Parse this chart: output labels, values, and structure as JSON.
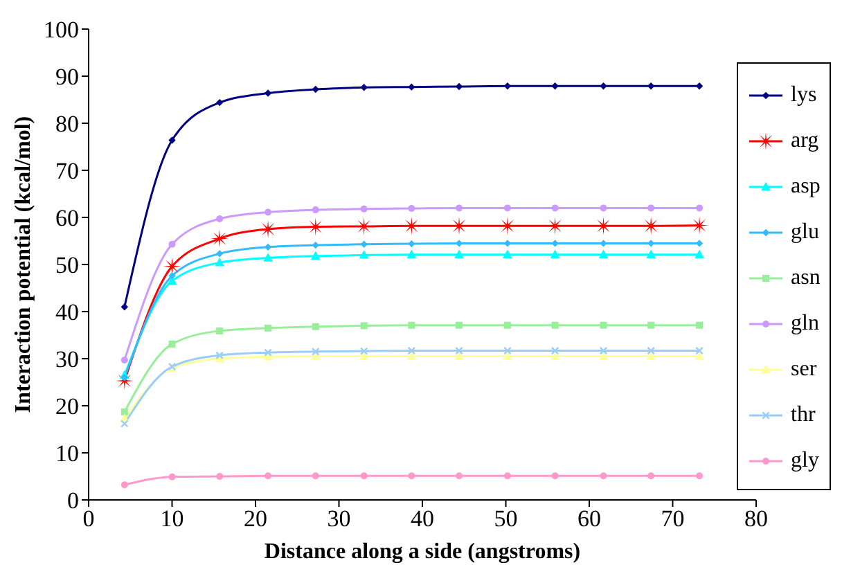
{
  "chart_data": {
    "type": "line",
    "xlabel": "Distance along a side (angstroms)",
    "ylabel": "Interaction potential (kcal/mol)",
    "x": [
      4.3,
      10,
      15.7,
      21.5,
      27.2,
      33,
      38.7,
      44.4,
      50.2,
      55.9,
      61.7,
      67.4,
      73.2
    ],
    "xlim": [
      0,
      80
    ],
    "xticks": [
      0,
      10,
      20,
      30,
      40,
      50,
      60,
      70,
      80
    ],
    "ylim": [
      0,
      100
    ],
    "yticks": [
      0,
      10,
      20,
      30,
      40,
      50,
      60,
      70,
      80,
      90,
      100
    ],
    "grid": false,
    "legend": "right",
    "line_style": "solid",
    "series": [
      {
        "name": "lys",
        "color": "#000080",
        "marker": "diamond",
        "values": [
          41,
          76.4,
          84.4,
          86.4,
          87.2,
          87.6,
          87.7,
          87.8,
          87.9,
          87.9,
          87.9,
          87.9,
          87.9
        ]
      },
      {
        "name": "arg",
        "color": "#ff0000",
        "marker": "star",
        "values": [
          25.3,
          49.6,
          55.5,
          57.5,
          58,
          58.1,
          58.2,
          58.2,
          58.2,
          58.2,
          58.2,
          58.2,
          58.3
        ]
      },
      {
        "name": "asp",
        "color": "#00ffff",
        "marker": "triangle",
        "values": [
          26.5,
          46.5,
          50.4,
          51.4,
          51.8,
          52,
          52.1,
          52.1,
          52.1,
          52.1,
          52.1,
          52.1,
          52.1
        ]
      },
      {
        "name": "glu",
        "color": "#33bbff",
        "marker": "diamond",
        "values": [
          26,
          47.6,
          52.3,
          53.7,
          54.1,
          54.3,
          54.4,
          54.5,
          54.5,
          54.5,
          54.5,
          54.5,
          54.5
        ]
      },
      {
        "name": "asn",
        "color": "#99ee99",
        "marker": "square",
        "values": [
          18.7,
          33.1,
          35.9,
          36.5,
          36.8,
          37,
          37.1,
          37.1,
          37.1,
          37.1,
          37.1,
          37.1,
          37.1
        ]
      },
      {
        "name": "gln",
        "color": "#cc99ff",
        "marker": "circle",
        "values": [
          29.7,
          54.3,
          59.7,
          61.1,
          61.6,
          61.8,
          61.9,
          62,
          62,
          62,
          62,
          62,
          62
        ]
      },
      {
        "name": "ser",
        "color": "#ffff99",
        "marker": "triangle",
        "values": [
          17.2,
          28,
          30,
          30.4,
          30.5,
          30.5,
          30.5,
          30.5,
          30.5,
          30.5,
          30.5,
          30.5,
          30.5
        ]
      },
      {
        "name": "thr",
        "color": "#99ccff",
        "marker": "cross",
        "values": [
          16.2,
          28.3,
          30.7,
          31.3,
          31.5,
          31.6,
          31.7,
          31.7,
          31.7,
          31.7,
          31.7,
          31.7,
          31.7
        ]
      },
      {
        "name": "gly",
        "color": "#ff99cc",
        "marker": "circle",
        "values": [
          3.2,
          4.9,
          5,
          5.1,
          5.1,
          5.1,
          5.1,
          5.1,
          5.1,
          5.1,
          5.1,
          5.1,
          5.1
        ]
      }
    ]
  }
}
